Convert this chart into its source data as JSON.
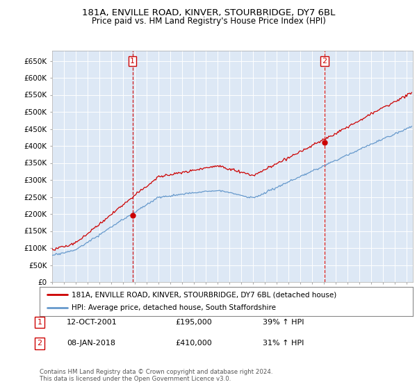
{
  "title": "181A, ENVILLE ROAD, KINVER, STOURBRIDGE, DY7 6BL",
  "subtitle": "Price paid vs. HM Land Registry's House Price Index (HPI)",
  "ylabel_ticks": [
    "£0",
    "£50K",
    "£100K",
    "£150K",
    "£200K",
    "£250K",
    "£300K",
    "£350K",
    "£400K",
    "£450K",
    "£500K",
    "£550K",
    "£600K",
    "£650K"
  ],
  "ytick_values": [
    0,
    50000,
    100000,
    150000,
    200000,
    250000,
    300000,
    350000,
    400000,
    450000,
    500000,
    550000,
    600000,
    650000
  ],
  "ylim": [
    0,
    680000
  ],
  "sale1": {
    "date_num": 2001.79,
    "price": 195000,
    "label": "1",
    "date_str": "12-OCT-2001",
    "pct": "39%"
  },
  "sale2": {
    "date_num": 2018.03,
    "price": 410000,
    "label": "2",
    "date_str": "08-JAN-2018",
    "pct": "31%"
  },
  "legend_line1": "181A, ENVILLE ROAD, KINVER, STOURBRIDGE, DY7 6BL (detached house)",
  "legend_line2": "HPI: Average price, detached house, South Staffordshire",
  "property_color": "#cc0000",
  "hpi_color": "#6699cc",
  "vline_color": "#cc0000",
  "background_color": "#ffffff",
  "chart_bg_color": "#dde8f5",
  "grid_color": "#ffffff",
  "xlim_start": 1995.0,
  "xlim_end": 2025.5,
  "footer": "Contains HM Land Registry data © Crown copyright and database right 2024.\nThis data is licensed under the Open Government Licence v3.0."
}
